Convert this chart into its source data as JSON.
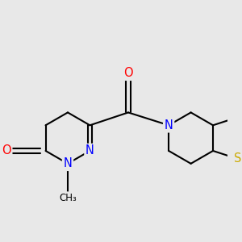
{
  "bg_color": "#e8e8e8",
  "bond_color": "#000000",
  "bond_width": 1.5,
  "atom_colors": {
    "O": "#ff0000",
    "N": "#0000ff",
    "S": "#ccaa00",
    "C": "#000000"
  },
  "font_size": 10.5,
  "figsize": [
    3.0,
    3.0
  ],
  "dpi": 100
}
